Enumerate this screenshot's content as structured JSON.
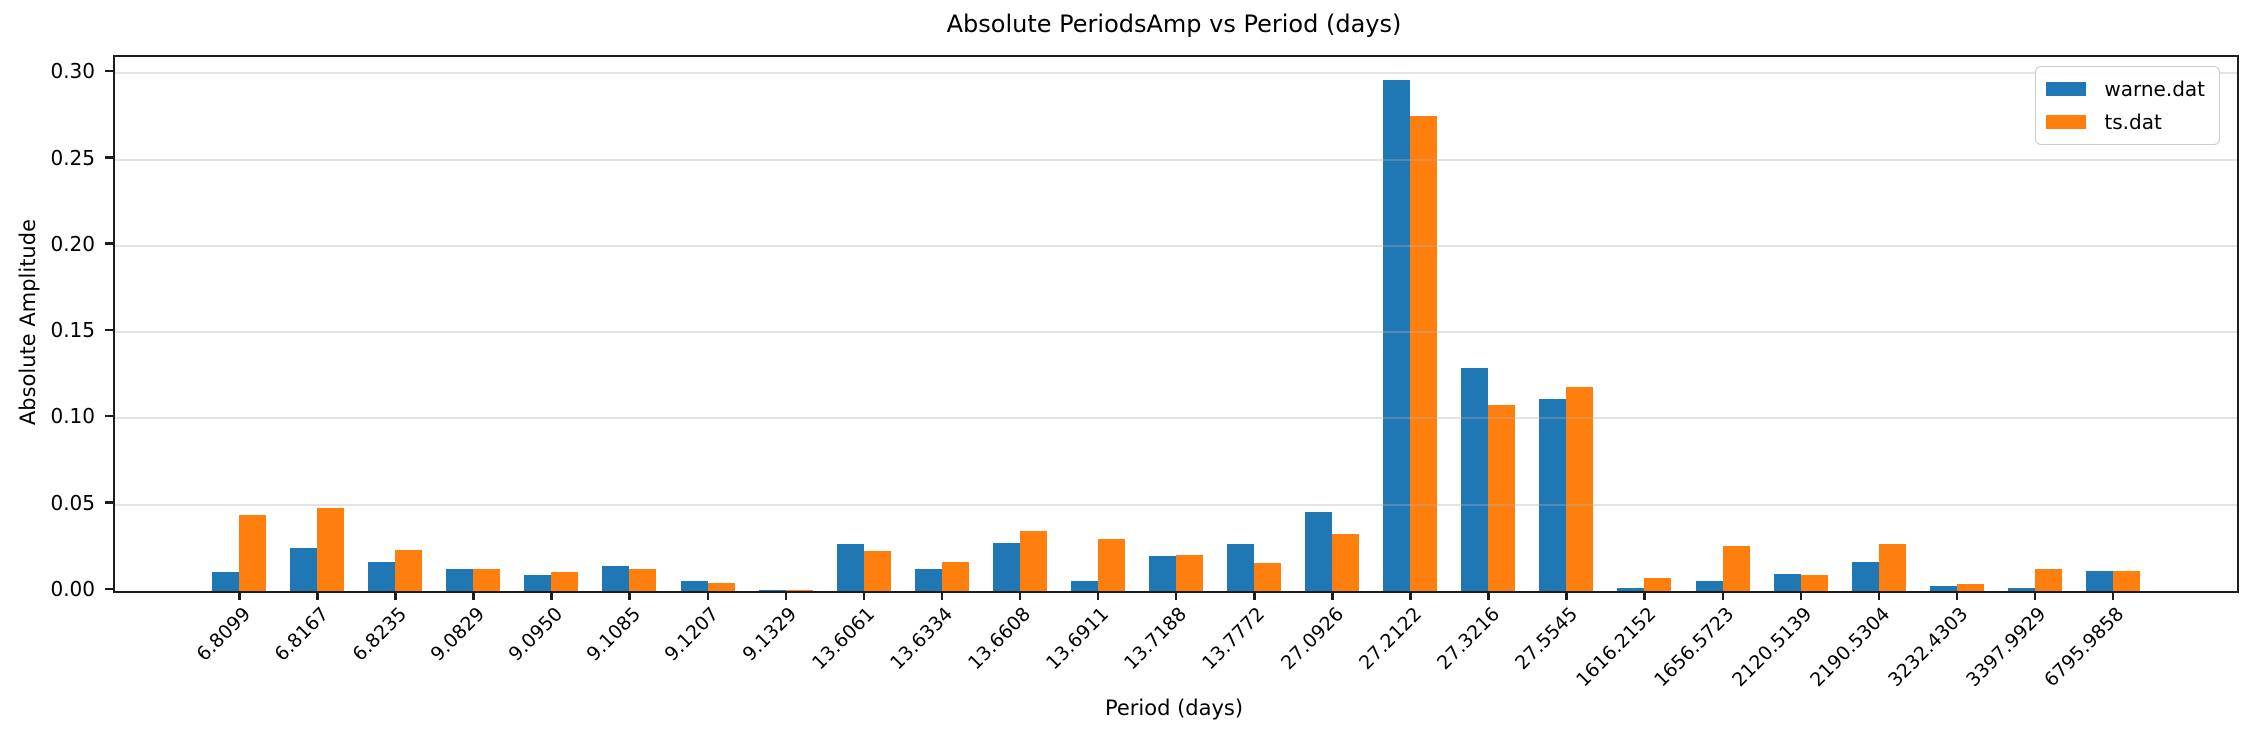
{
  "chart_data": {
    "type": "bar",
    "title": "Absolute PeriodsAmp vs Period (days)",
    "xlabel": "Period (days)",
    "ylabel": "Absolute Amplitude",
    "categories": [
      "6.8099",
      "6.8167",
      "6.8235",
      "9.0829",
      "9.0950",
      "9.1085",
      "9.1207",
      "9.1329",
      "13.6061",
      "13.6334",
      "13.6608",
      "13.6911",
      "13.7188",
      "13.7772",
      "27.0926",
      "27.2122",
      "27.3216",
      "27.5545",
      "1616.2152",
      "1656.5723",
      "2120.5139",
      "2190.5304",
      "3232.4303",
      "3397.9929",
      "6795.9858"
    ],
    "series": [
      {
        "name": "warne.dat",
        "color": "#1f77b4",
        "values": [
          0.011,
          0.025,
          0.017,
          0.013,
          0.009,
          0.0145,
          0.006,
          0.0005,
          0.027,
          0.013,
          0.028,
          0.006,
          0.02,
          0.027,
          0.046,
          0.296,
          0.129,
          0.111,
          0.002,
          0.006,
          0.01,
          0.017,
          0.003,
          0.002,
          0.0115
        ]
      },
      {
        "name": "ts.dat",
        "color": "#ff7f0e",
        "values": [
          0.044,
          0.048,
          0.024,
          0.013,
          0.011,
          0.013,
          0.0045,
          0.0005,
          0.023,
          0.017,
          0.035,
          0.03,
          0.021,
          0.0165,
          0.033,
          0.275,
          0.108,
          0.118,
          0.0075,
          0.026,
          0.009,
          0.027,
          0.004,
          0.013,
          0.0115
        ]
      }
    ],
    "yticks": [
      "0.00",
      "0.05",
      "0.10",
      "0.15",
      "0.20",
      "0.25",
      "0.30"
    ],
    "ylim": [
      0,
      0.3094
    ],
    "grid": "horizontal",
    "legend_position": "upper right",
    "axis_color": "#1c1c1c",
    "grid_color": "#ededed"
  }
}
